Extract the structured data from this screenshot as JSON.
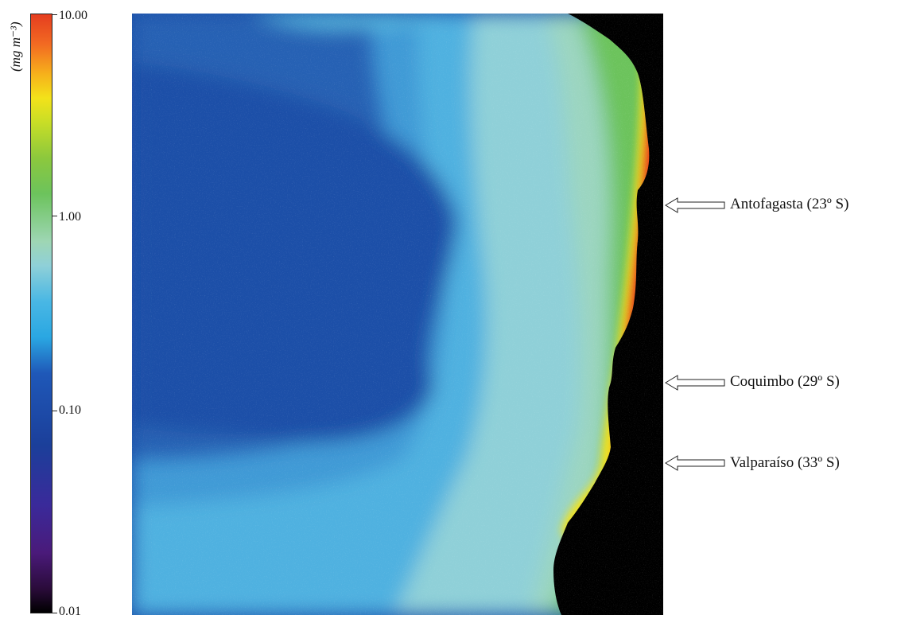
{
  "colorbar": {
    "unit": "(mg m⁻³)",
    "ticks": [
      {
        "label": "10.00",
        "value": 10.0
      },
      {
        "label": "1.00",
        "value": 1.0
      },
      {
        "label": "0.10",
        "value": 0.1
      },
      {
        "label": "0.01",
        "value": 0.01
      }
    ],
    "colors": [
      "#000000",
      "#4a1a7a",
      "#1b3f9a",
      "#2aa7e2",
      "#8fd0d8",
      "#6cc35c",
      "#f3e21a",
      "#e53d1f"
    ]
  },
  "map": {
    "land_color": "#000000",
    "offshore_color": "#1b4fa8",
    "coastal_color": "#e53d1f"
  },
  "locations": [
    {
      "name": "Antofagasta (23º S)"
    },
    {
      "name": "Coquimbo (29º S)"
    },
    {
      "name": "Valparaíso (33º S)"
    }
  ]
}
